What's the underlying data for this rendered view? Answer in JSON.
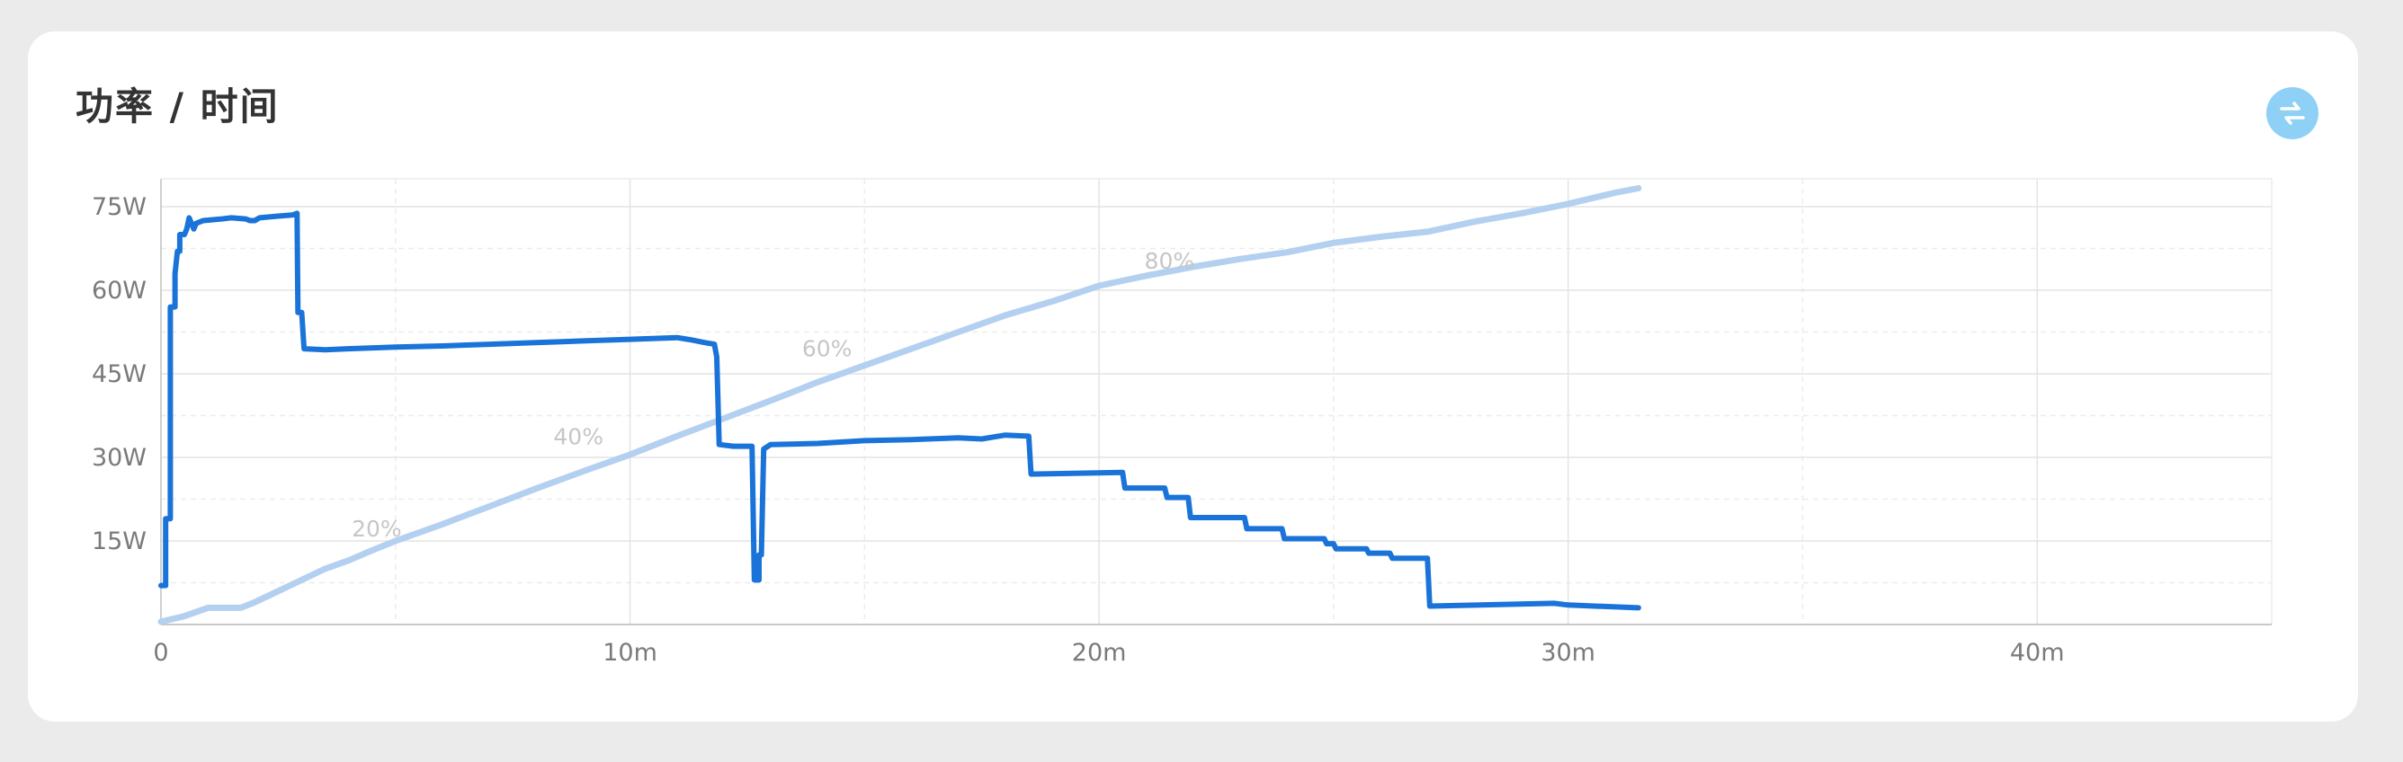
{
  "card": {
    "title": "功率 / 时间"
  },
  "controls": {
    "toggle_icon": "swap-icon",
    "accent_color": "#8fd0f7"
  },
  "chart_data": {
    "type": "line",
    "title": "功率 / 时间",
    "xlabel": "",
    "ylabel": "",
    "x_unit": "minutes",
    "xlim": [
      0,
      45
    ],
    "ylim": [
      0,
      80
    ],
    "x_ticks": [
      0,
      10,
      20,
      30,
      40
    ],
    "x_tick_labels": [
      "0",
      "10m",
      "20m",
      "30m",
      "40m"
    ],
    "y_ticks": [
      15,
      30,
      45,
      60,
      75
    ],
    "y_tick_labels": [
      "15W",
      "30W",
      "45W",
      "60W",
      "75W"
    ],
    "grid": true,
    "series": [
      {
        "color": "#1a73d9",
        "points": [
          [
            0.0,
            7
          ],
          [
            0.1,
            7
          ],
          [
            0.1,
            19
          ],
          [
            0.2,
            19
          ],
          [
            0.2,
            57
          ],
          [
            0.3,
            57
          ],
          [
            0.3,
            63
          ],
          [
            0.35,
            67
          ],
          [
            0.4,
            67
          ],
          [
            0.4,
            70
          ],
          [
            0.5,
            70
          ],
          [
            0.55,
            71
          ],
          [
            0.6,
            73
          ],
          [
            0.7,
            71
          ],
          [
            0.75,
            72
          ],
          [
            0.9,
            72.5
          ],
          [
            1.3,
            72.8
          ],
          [
            1.5,
            73
          ],
          [
            1.8,
            72.8
          ],
          [
            1.9,
            72.5
          ],
          [
            2.0,
            72.5
          ],
          [
            2.1,
            73
          ],
          [
            2.5,
            73.3
          ],
          [
            2.8,
            73.5
          ],
          [
            2.9,
            73.8
          ],
          [
            2.92,
            56
          ],
          [
            3.0,
            56
          ],
          [
            3.05,
            49.5
          ],
          [
            3.5,
            49.3
          ],
          [
            4.0,
            49.5
          ],
          [
            5.0,
            49.8
          ],
          [
            6.0,
            50
          ],
          [
            7.0,
            50.3
          ],
          [
            8.0,
            50.6
          ],
          [
            9.0,
            50.9
          ],
          [
            10.0,
            51.2
          ],
          [
            11.0,
            51.5
          ],
          [
            11.3,
            51.1
          ],
          [
            11.6,
            50.6
          ],
          [
            11.8,
            50.3
          ],
          [
            11.85,
            48
          ],
          [
            11.9,
            32.3
          ],
          [
            12.2,
            32
          ],
          [
            12.6,
            32
          ],
          [
            12.65,
            8
          ],
          [
            12.75,
            8
          ],
          [
            12.75,
            12.5
          ],
          [
            12.8,
            12.5
          ],
          [
            12.85,
            31.5
          ],
          [
            13.0,
            32.3
          ],
          [
            14.0,
            32.5
          ],
          [
            15.0,
            33
          ],
          [
            16.0,
            33.2
          ],
          [
            17.0,
            33.5
          ],
          [
            17.5,
            33.3
          ],
          [
            18.0,
            34
          ],
          [
            18.5,
            33.8
          ],
          [
            18.55,
            27
          ],
          [
            20.5,
            27.3
          ],
          [
            20.55,
            24.5
          ],
          [
            21.4,
            24.5
          ],
          [
            21.45,
            22.8
          ],
          [
            21.9,
            22.8
          ],
          [
            21.95,
            19.2
          ],
          [
            23.1,
            19.2
          ],
          [
            23.15,
            17.2
          ],
          [
            23.9,
            17.2
          ],
          [
            23.95,
            15.4
          ],
          [
            24.8,
            15.4
          ],
          [
            24.85,
            14.5
          ],
          [
            25.0,
            14.5
          ],
          [
            25.05,
            13.6
          ],
          [
            25.7,
            13.6
          ],
          [
            25.75,
            12.8
          ],
          [
            26.2,
            12.8
          ],
          [
            26.25,
            11.9
          ],
          [
            27.0,
            11.9
          ],
          [
            27.05,
            3.3
          ],
          [
            29.7,
            3.8
          ],
          [
            30.0,
            3.5
          ],
          [
            31.5,
            3
          ]
        ]
      },
      {
        "color": "#b3d0f0",
        "points": [
          [
            0.0,
            0.5
          ],
          [
            0.5,
            1.5
          ],
          [
            1.0,
            3
          ],
          [
            1.7,
            3
          ],
          [
            2.0,
            4
          ],
          [
            2.5,
            6
          ],
          [
            3.0,
            8
          ],
          [
            3.5,
            10
          ],
          [
            4.0,
            11.5
          ],
          [
            4.5,
            13.3
          ],
          [
            5.0,
            15
          ],
          [
            6.0,
            18
          ],
          [
            7.0,
            21.2
          ],
          [
            8.0,
            24.4
          ],
          [
            9.0,
            27.5
          ],
          [
            10.0,
            30.5
          ],
          [
            11.0,
            33.8
          ],
          [
            12.0,
            37
          ],
          [
            13.0,
            40.2
          ],
          [
            14.0,
            43.5
          ],
          [
            15.0,
            46.5
          ],
          [
            16.0,
            49.5
          ],
          [
            17.0,
            52.5
          ],
          [
            18.0,
            55.5
          ],
          [
            19.0,
            58
          ],
          [
            20.0,
            60.8
          ],
          [
            21.0,
            62.6
          ],
          [
            22.0,
            64.2
          ],
          [
            23.0,
            65.6
          ],
          [
            24.0,
            66.8
          ],
          [
            25.0,
            68.5
          ],
          [
            26.0,
            69.6
          ],
          [
            27.0,
            70.5
          ],
          [
            28.0,
            72.3
          ],
          [
            29.0,
            73.8
          ],
          [
            30.0,
            75.5
          ],
          [
            31.0,
            77.5
          ],
          [
            31.5,
            78.3
          ]
        ],
        "annotations": [
          {
            "label": "20%",
            "x": 4.6,
            "y": 15.2
          },
          {
            "label": "40%",
            "x": 8.9,
            "y": 31.7
          },
          {
            "label": "60%",
            "x": 14.2,
            "y": 47.5
          },
          {
            "label": "80%",
            "x": 21.5,
            "y": 63.2
          }
        ]
      }
    ]
  }
}
